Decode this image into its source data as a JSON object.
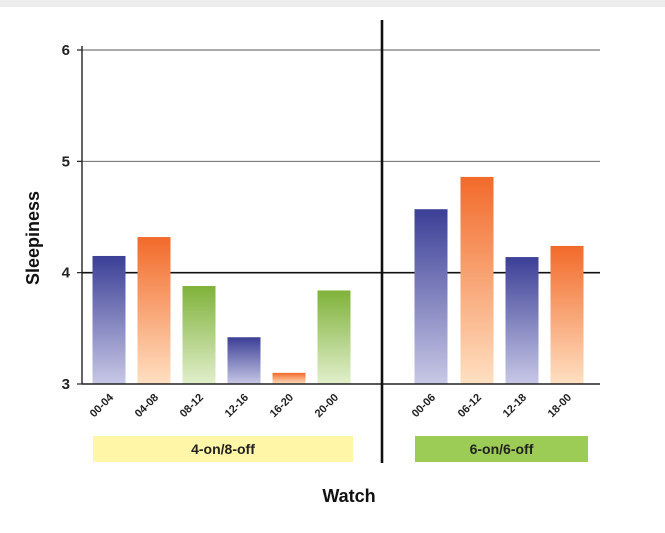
{
  "chart_data": {
    "type": "bar",
    "ylabel": "Sleepiness",
    "xlabel": "Watch",
    "ylim": [
      3,
      6
    ],
    "yticks": [
      3,
      4,
      5,
      6
    ],
    "grid": true,
    "colors": {
      "blue": "#3b3f96",
      "orange": "#f26a2a",
      "green": "#7fb23a",
      "schedule_a_band": "#fff6a8",
      "schedule_b_band": "#9ccc55"
    },
    "groups": [
      {
        "name": "4-on/8-off",
        "bars": [
          {
            "label": "00-04",
            "value": 4.15,
            "color": "blue"
          },
          {
            "label": "04-08",
            "value": 4.32,
            "color": "orange"
          },
          {
            "label": "08-12",
            "value": 3.88,
            "color": "green"
          },
          {
            "label": "12-16",
            "value": 3.42,
            "color": "blue"
          },
          {
            "label": "16-20",
            "value": 3.1,
            "color": "orange"
          },
          {
            "label": "20-00",
            "value": 3.84,
            "color": "green"
          }
        ]
      },
      {
        "name": "6-on/6-off",
        "bars": [
          {
            "label": "00-06",
            "value": 4.57,
            "color": "blue"
          },
          {
            "label": "06-12",
            "value": 4.86,
            "color": "orange"
          },
          {
            "label": "12-18",
            "value": 4.14,
            "color": "blue"
          },
          {
            "label": "18-00",
            "value": 4.24,
            "color": "orange"
          }
        ]
      }
    ]
  }
}
